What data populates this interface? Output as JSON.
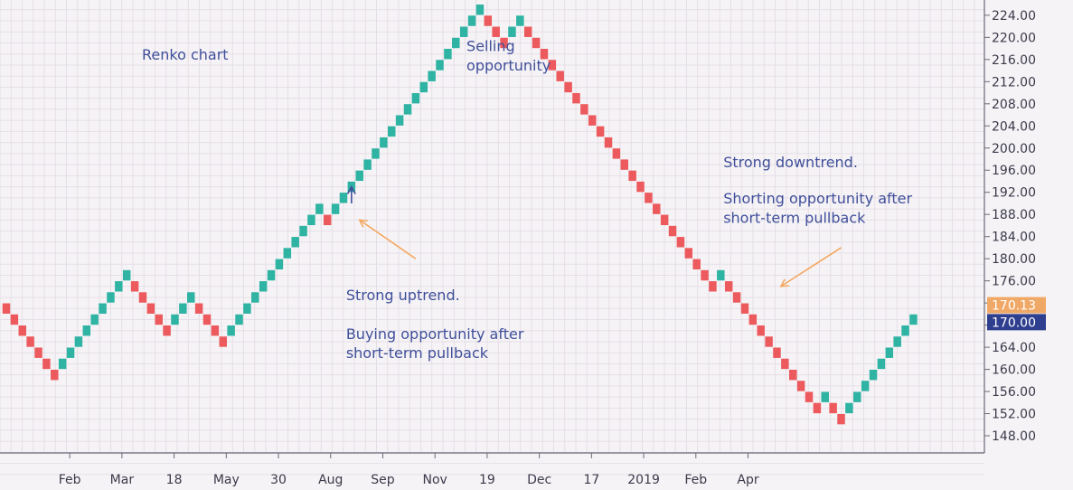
{
  "chart_data": {
    "type": "renko",
    "title": "Renko chart",
    "brick_size": 2,
    "ylim": [
      145,
      227
    ],
    "y_ticks": [
      148,
      152,
      156,
      160,
      164,
      168,
      172,
      176,
      180,
      184,
      188,
      192,
      196,
      200,
      204,
      208,
      212,
      216,
      220,
      224
    ],
    "y_tick_labels": [
      "148.00",
      "152.00",
      "156.00",
      "160.00",
      "164.00",
      "168.00",
      "172.00",
      "176.00",
      "180.00",
      "184.00",
      "188.00",
      "192.00",
      "196.00",
      "200.00",
      "204.00",
      "208.00",
      "212.00",
      "216.00",
      "220.00",
      "224.00"
    ],
    "x_tick_labels": [
      "Feb",
      "Mar",
      "18",
      "May",
      "30",
      "Aug",
      "Sep",
      "Nov",
      "19",
      "Dec",
      "17",
      "2019",
      "Feb",
      "Apr"
    ],
    "x_tick_positions": [
      5,
      11.5,
      18,
      24.5,
      31,
      37.5,
      44,
      50.5,
      57,
      63.5,
      70,
      76.5,
      83,
      89.5
    ],
    "up_color": "#2fb3a3",
    "down_color": "#ec5a5d",
    "brick_values": [
      171,
      169,
      167,
      165,
      163,
      161,
      159,
      161,
      163,
      165,
      167,
      169,
      171,
      173,
      175,
      177,
      175,
      173,
      171,
      169,
      167,
      169,
      171,
      173,
      171,
      169,
      167,
      165,
      167,
      169,
      171,
      173,
      175,
      177,
      179,
      181,
      183,
      185,
      187,
      189,
      187,
      189,
      191,
      193,
      195,
      197,
      199,
      201,
      203,
      205,
      207,
      209,
      211,
      213,
      215,
      217,
      219,
      221,
      223,
      225,
      223,
      221,
      219,
      221,
      223,
      221,
      219,
      217,
      215,
      213,
      211,
      209,
      207,
      205,
      203,
      201,
      199,
      197,
      195,
      193,
      191,
      189,
      187,
      185,
      183,
      181,
      179,
      177,
      175,
      177,
      175,
      173,
      171,
      169,
      167,
      165,
      163,
      161,
      159,
      157,
      155,
      153,
      155,
      153,
      151,
      153,
      155,
      157,
      159,
      161,
      163,
      165,
      167,
      169
    ],
    "brick_directions": [
      "down",
      "down",
      "down",
      "down",
      "down",
      "down",
      "down",
      "up",
      "up",
      "up",
      "up",
      "up",
      "up",
      "up",
      "up",
      "up",
      "down",
      "down",
      "down",
      "down",
      "down",
      "up",
      "up",
      "up",
      "down",
      "down",
      "down",
      "down",
      "up",
      "up",
      "up",
      "up",
      "up",
      "up",
      "up",
      "up",
      "up",
      "up",
      "up",
      "up",
      "down",
      "up",
      "up",
      "up",
      "up",
      "up",
      "up",
      "up",
      "up",
      "up",
      "up",
      "up",
      "up",
      "up",
      "up",
      "up",
      "up",
      "up",
      "up",
      "up",
      "down",
      "down",
      "down",
      "up",
      "up",
      "down",
      "down",
      "down",
      "down",
      "down",
      "down",
      "down",
      "down",
      "down",
      "down",
      "down",
      "down",
      "down",
      "down",
      "down",
      "down",
      "down",
      "down",
      "down",
      "down",
      "down",
      "down",
      "down",
      "down",
      "up",
      "down",
      "down",
      "down",
      "down",
      "down",
      "down",
      "down",
      "down",
      "down",
      "down",
      "down",
      "down",
      "up",
      "down",
      "down",
      "up",
      "up",
      "up",
      "up",
      "up",
      "up",
      "up",
      "up",
      "up"
    ],
    "price_badges": [
      {
        "label": "170.13",
        "value": 170.13,
        "color": "#f0a866"
      },
      {
        "label": "170.00",
        "value": 170.0,
        "color": "#2f3f8f"
      }
    ],
    "annotations": [
      {
        "text": "Selling",
        "brick_index": 58,
        "value": 218.5
      },
      {
        "text": "opportunity",
        "brick_index": 58,
        "value": 215
      },
      {
        "text": "Strong downtrend.",
        "brick_index": 90,
        "value": 197.5
      },
      {
        "text": "Shorting opportunity after",
        "brick_index": 90,
        "value": 191
      },
      {
        "text": "short-term pullback",
        "brick_index": 90,
        "value": 187.5
      },
      {
        "text": "Strong uptrend.",
        "brick_index": 43,
        "value": 173.5
      },
      {
        "text": "Buying opportunity after",
        "brick_index": 43,
        "value": 166.5
      },
      {
        "text": "short-term pullback",
        "brick_index": 43,
        "value": 163
      }
    ],
    "arrows": [
      {
        "from_index": 51,
        "from_value": 180,
        "to_index": 44,
        "to_value": 187
      },
      {
        "from_index": 104,
        "from_value": 182,
        "to_index": 96.5,
        "to_value": 175
      },
      {
        "from_index": 43,
        "from_value": 190,
        "to_index": 43,
        "to_value": 193,
        "style": "up"
      }
    ],
    "grid": true
  }
}
